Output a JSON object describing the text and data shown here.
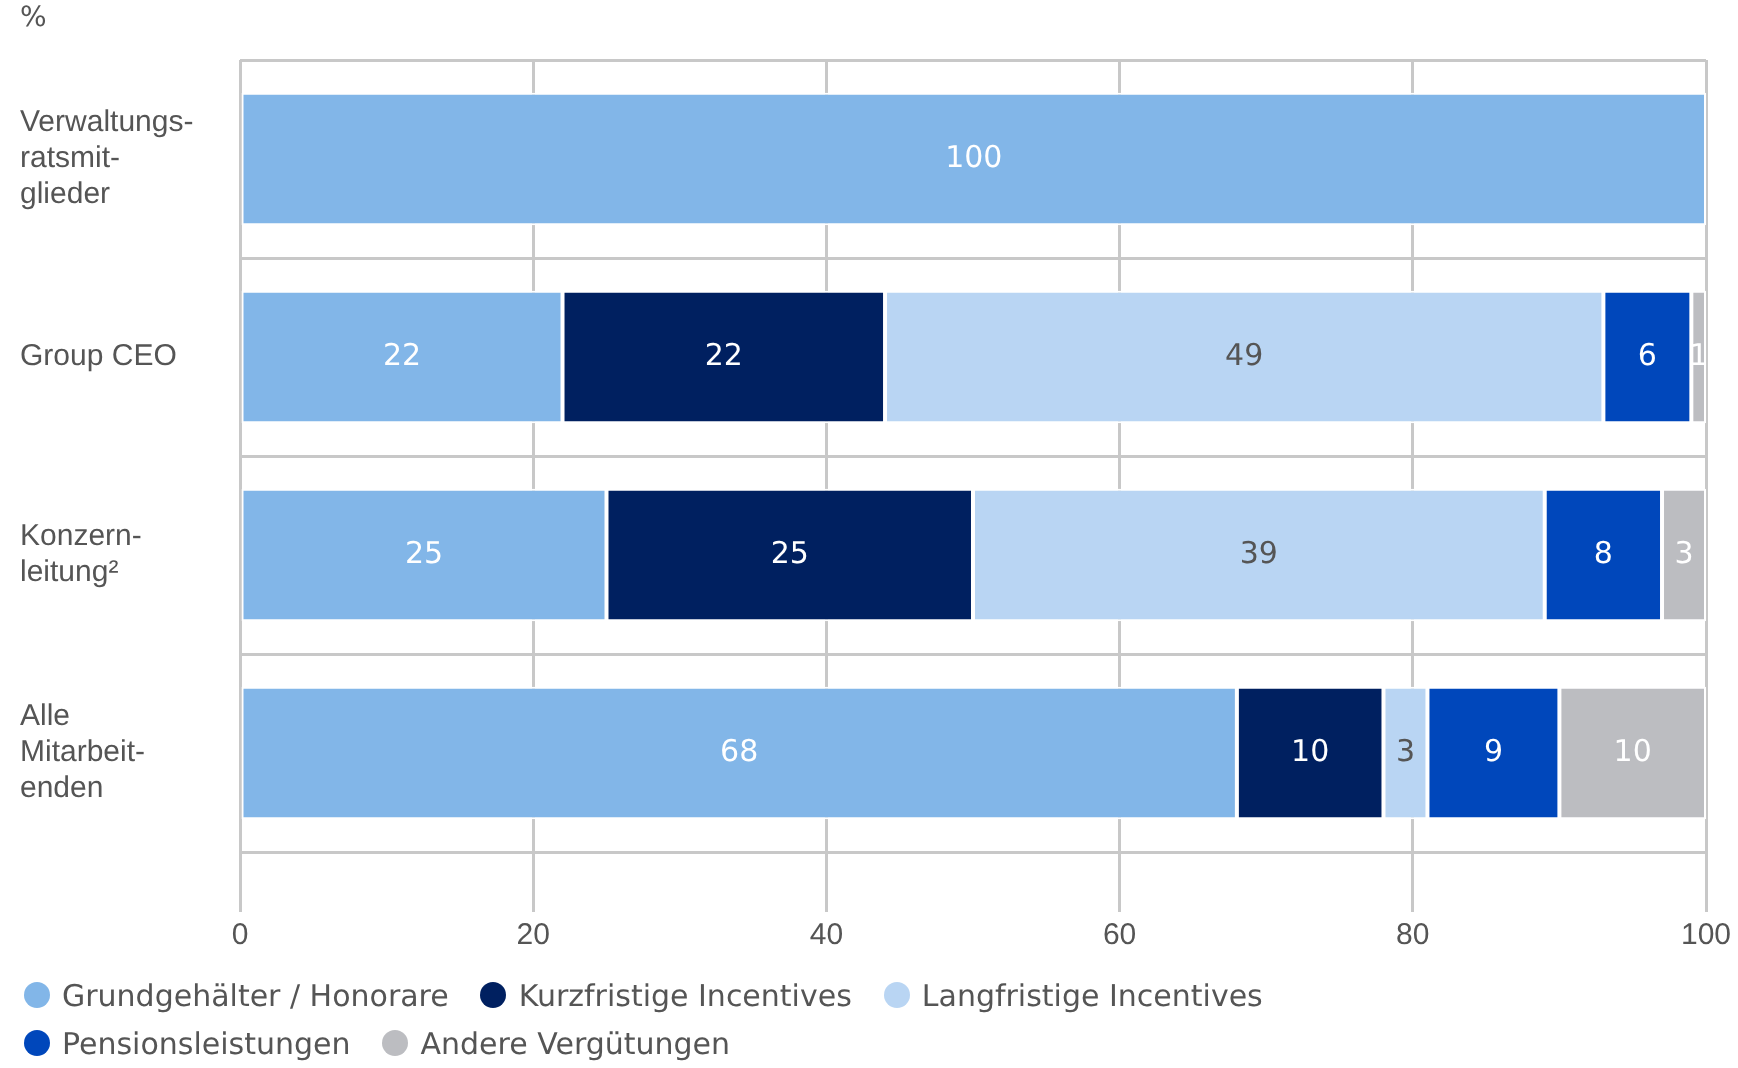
{
  "chart_data": {
    "type": "bar",
    "orientation": "horizontal",
    "stacked": true,
    "xlabel": "%",
    "categories": [
      "Verwaltungs-\nratsmit-\nglieder",
      "Group CEO",
      "Konzern-\nleitung²",
      "Alle\nMitarbeit-\nenden"
    ],
    "series": [
      {
        "name": "Grundgehälter / Honorare",
        "color": "#82b6e8",
        "values": [
          100,
          22,
          25,
          68
        ]
      },
      {
        "name": "Kurzfristige Incentives",
        "color": "#002060",
        "values": [
          null,
          22,
          25,
          10
        ]
      },
      {
        "name": "Langfristige Incentives",
        "color": "#b9d5f3",
        "values": [
          null,
          49,
          39,
          3
        ]
      },
      {
        "name": "Pensionsleistungen",
        "color": "#0047bb",
        "values": [
          null,
          6,
          8,
          9
        ]
      },
      {
        "name": "Andere Vergütungen",
        "color": "#bcbdc1",
        "values": [
          null,
          1,
          3,
          10
        ]
      }
    ],
    "xlim": [
      0,
      100
    ],
    "xticks": [
      0,
      20,
      40,
      60,
      80,
      100
    ],
    "grid": true,
    "legend": "bottom",
    "data_labels": true
  }
}
